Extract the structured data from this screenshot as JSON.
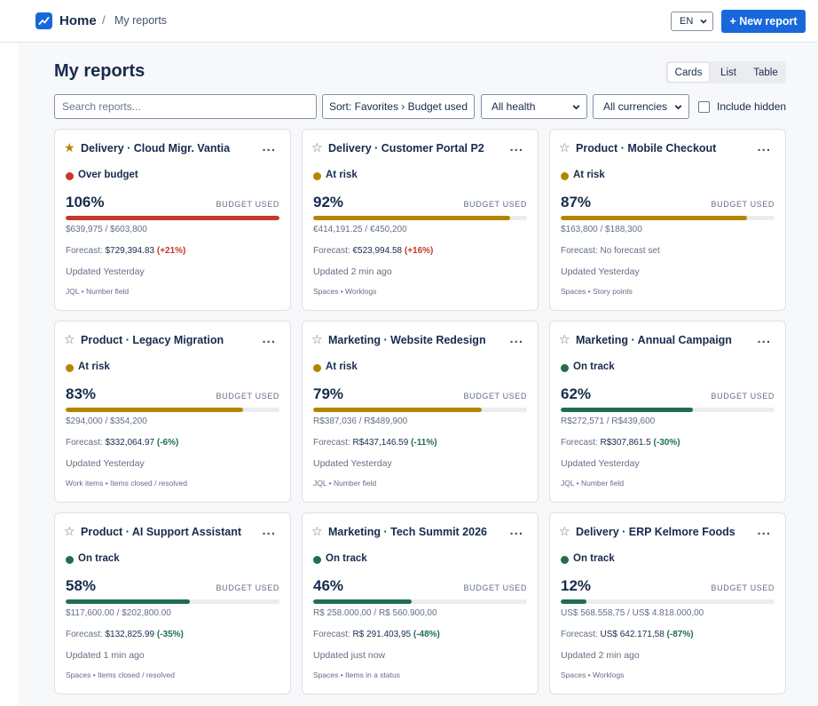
{
  "header": {
    "home_label": "Home",
    "breadcrumb_separator": "/",
    "breadcrumb_current": "My reports",
    "language": "EN",
    "new_report_label": "+ New report",
    "accent_color": "#1868db"
  },
  "page": {
    "title": "My reports",
    "view_tabs": [
      {
        "label": "Cards",
        "active": true
      },
      {
        "label": "List",
        "active": false
      },
      {
        "label": "Table",
        "active": false
      }
    ]
  },
  "filters": {
    "search_placeholder": "Search reports...",
    "sort_label": "Sort: Favorites › Budget used",
    "health_selected": "All health",
    "currency_selected": "All currencies",
    "include_hidden_label": "Include hidden",
    "include_hidden_checked": false
  },
  "labels": {
    "budget_used": "BUDGET USED",
    "forecast_prefix": "Forecast:",
    "more": "..."
  },
  "status_colors": {
    "Over budget": "#c9372c",
    "At risk": "#b38600",
    "On track": "#216e4e"
  },
  "reports": [
    {
      "favorite": true,
      "name": "Delivery · Cloud Migr. Vantia",
      "status": "Over budget",
      "percent_label": "106%",
      "percent": 106,
      "amounts": "$639,975 / $603,800",
      "forecast_value": "$729,394.83",
      "forecast_delta": "(+21%)",
      "delta_color": "#c9372c",
      "updated": "Updated Yesterday",
      "source": "JQL • Number field"
    },
    {
      "favorite": false,
      "name": "Delivery · Customer Portal P2",
      "status": "At risk",
      "percent_label": "92%",
      "percent": 92,
      "amounts": "€414,191.25 / €450,200",
      "forecast_value": "€523,994.58",
      "forecast_delta": "(+16%)",
      "delta_color": "#c9372c",
      "updated": "Updated 2 min ago",
      "source": "Spaces • Worklogs"
    },
    {
      "favorite": false,
      "name": "Product · Mobile Checkout",
      "status": "At risk",
      "percent_label": "87%",
      "percent": 87,
      "amounts": "$163,800 / $188,300",
      "forecast_value": "No forecast set",
      "forecast_delta": "",
      "delta_color": "#626f86",
      "updated": "Updated Yesterday",
      "source": "Spaces • Story points"
    },
    {
      "favorite": false,
      "name": "Product · Legacy Migration",
      "status": "At risk",
      "percent_label": "83%",
      "percent": 83,
      "amounts": "$294,000 / $354,200",
      "forecast_value": "$332,064.97",
      "forecast_delta": "(-6%)",
      "delta_color": "#216e4e",
      "updated": "Updated Yesterday",
      "source": "Work items • Items closed / resolved"
    },
    {
      "favorite": false,
      "name": "Marketing · Website Redesign",
      "status": "At risk",
      "percent_label": "79%",
      "percent": 79,
      "amounts": "R$387,036 / R$489,900",
      "forecast_value": "R$437,146.59",
      "forecast_delta": "(-11%)",
      "delta_color": "#216e4e",
      "updated": "Updated Yesterday",
      "source": "JQL • Number field"
    },
    {
      "favorite": false,
      "name": "Marketing · Annual Campaign",
      "status": "On track",
      "percent_label": "62%",
      "percent": 62,
      "amounts": "R$272,571 / R$439,600",
      "forecast_value": "R$307,861.5",
      "forecast_delta": "(-30%)",
      "delta_color": "#216e4e",
      "updated": "Updated Yesterday",
      "source": "JQL • Number field"
    },
    {
      "favorite": false,
      "name": "Product · AI Support Assistant",
      "status": "On track",
      "percent_label": "58%",
      "percent": 58,
      "amounts": "$117,600.00 / $202,800.00",
      "forecast_value": "$132,825.99",
      "forecast_delta": "(-35%)",
      "delta_color": "#216e4e",
      "updated": "Updated 1 min ago",
      "source": "Spaces • Items closed / resolved"
    },
    {
      "favorite": false,
      "name": "Marketing · Tech Summit 2026",
      "status": "On track",
      "percent_label": "46%",
      "percent": 46,
      "amounts": "R$ 258.000,00 / R$ 560.900,00",
      "forecast_value": "R$ 291.403,95",
      "forecast_delta": "(-48%)",
      "delta_color": "#216e4e",
      "updated": "Updated just now",
      "source": "Spaces • Items in a status"
    },
    {
      "favorite": false,
      "name": "Delivery · ERP Kelmore Foods",
      "status": "On track",
      "percent_label": "12%",
      "percent": 12,
      "amounts": "US$ 568.558,75 / US$ 4.818.000,00",
      "forecast_value": "US$ 642.171,58",
      "forecast_delta": "(-87%)",
      "delta_color": "#216e4e",
      "updated": "Updated 2 min ago",
      "source": "Spaces • Worklogs"
    }
  ]
}
